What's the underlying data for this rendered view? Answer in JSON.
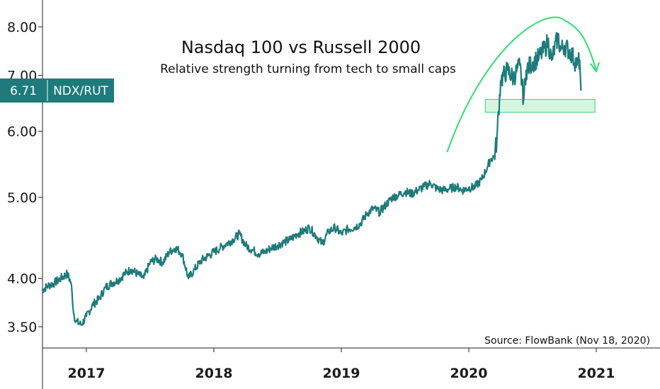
{
  "chart_data": {
    "type": "line",
    "title": "Nasdaq 100 vs Russell 2000",
    "subtitle": "Relative strength turning from tech to small caps",
    "source": "Source: FlowBank (Nov 18, 2020)",
    "scale": "log",
    "ylim": [
      3.3,
      8.5
    ],
    "xlim": [
      2016.65,
      2021.5
    ],
    "y_ticks": [
      {
        "value": 3.5,
        "label": "3.50"
      },
      {
        "value": 4.0,
        "label": "4.00"
      },
      {
        "value": 5.0,
        "label": "5.00"
      },
      {
        "value": 6.0,
        "label": "6.00"
      },
      {
        "value": 7.0,
        "label": "7.00"
      },
      {
        "value": 8.0,
        "label": "8.00"
      }
    ],
    "x_ticks": [
      {
        "value": 2017,
        "label": "2017"
      },
      {
        "value": 2018,
        "label": "2018"
      },
      {
        "value": 2019,
        "label": "2019"
      },
      {
        "value": 2020,
        "label": "2020"
      },
      {
        "value": 2021,
        "label": "2021"
      }
    ],
    "last_value": {
      "value": 6.71,
      "value_label": "6.71",
      "label": "NDX/RUT"
    },
    "series": [
      {
        "name": "NDX/RUT",
        "x": [
          2016.65,
          2016.7,
          2016.75,
          2016.8,
          2016.85,
          2016.88,
          2016.9,
          2016.92,
          2016.96,
          2017.0,
          2017.05,
          2017.1,
          2017.15,
          2017.2,
          2017.25,
          2017.3,
          2017.35,
          2017.4,
          2017.45,
          2017.5,
          2017.55,
          2017.6,
          2017.65,
          2017.7,
          2017.75,
          2017.8,
          2017.85,
          2017.9,
          2017.95,
          2018.0,
          2018.05,
          2018.1,
          2018.15,
          2018.2,
          2018.25,
          2018.3,
          2018.35,
          2018.4,
          2018.45,
          2018.5,
          2018.55,
          2018.6,
          2018.65,
          2018.7,
          2018.75,
          2018.8,
          2018.85,
          2018.9,
          2018.95,
          2019.0,
          2019.05,
          2019.1,
          2019.15,
          2019.2,
          2019.25,
          2019.3,
          2019.35,
          2019.4,
          2019.45,
          2019.5,
          2019.55,
          2019.6,
          2019.65,
          2019.7,
          2019.75,
          2019.8,
          2019.85,
          2019.9,
          2019.95,
          2020.0,
          2020.05,
          2020.1,
          2020.15,
          2020.17,
          2020.2,
          2020.22,
          2020.25,
          2020.3,
          2020.35,
          2020.4,
          2020.43,
          2020.45,
          2020.5,
          2020.55,
          2020.6,
          2020.62,
          2020.65,
          2020.7,
          2020.72,
          2020.75,
          2020.8,
          2020.85,
          2020.87,
          2020.88
        ],
        "values": [
          3.87,
          3.92,
          3.95,
          4.0,
          4.05,
          3.95,
          3.63,
          3.55,
          3.52,
          3.6,
          3.72,
          3.78,
          3.9,
          3.95,
          3.98,
          4.05,
          4.1,
          4.05,
          4.0,
          4.18,
          4.22,
          4.18,
          4.3,
          4.35,
          4.28,
          4.0,
          4.1,
          4.2,
          4.25,
          4.3,
          4.35,
          4.4,
          4.45,
          4.52,
          4.38,
          4.33,
          4.28,
          4.3,
          4.35,
          4.38,
          4.42,
          4.45,
          4.52,
          4.55,
          4.6,
          4.5,
          4.4,
          4.55,
          4.6,
          4.52,
          4.58,
          4.6,
          4.65,
          4.78,
          4.85,
          4.8,
          4.9,
          5.0,
          5.03,
          5.08,
          5.05,
          5.1,
          5.15,
          5.2,
          5.12,
          5.1,
          5.12,
          5.15,
          5.1,
          5.13,
          5.15,
          5.25,
          5.45,
          5.55,
          5.6,
          5.85,
          6.9,
          7.1,
          6.95,
          7.2,
          6.55,
          7.1,
          7.25,
          7.35,
          7.55,
          7.7,
          7.3,
          7.8,
          7.5,
          7.6,
          7.45,
          7.2,
          7.3,
          6.71
        ]
      }
    ],
    "annotations": {
      "support_zone": {
        "y_range": [
          6.32,
          6.55
        ],
        "x_range": [
          2020.13,
          2020.99
        ]
      },
      "arc": {
        "x_range": [
          2019.83,
          2021.0
        ]
      }
    },
    "colors": {
      "line": "#1e7b7b",
      "badge": "#1e7b7b",
      "arc": "#2ee06e",
      "zone_fill": "#d6f5e2",
      "zone_stroke": "#3ed17a",
      "axis": "#222222"
    }
  }
}
